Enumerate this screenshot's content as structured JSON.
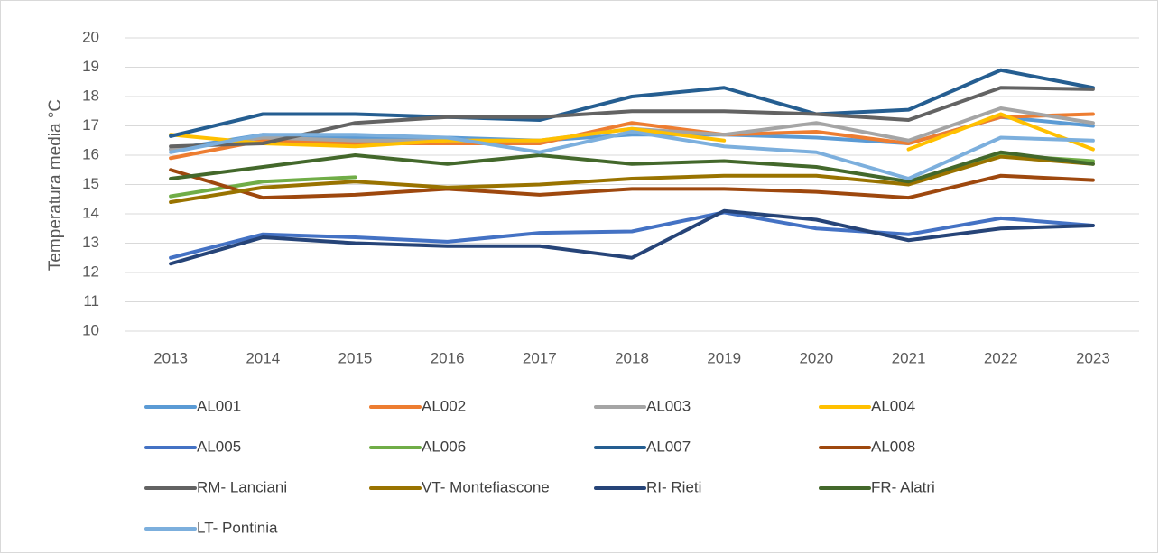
{
  "chart_data": {
    "type": "line",
    "y_label": "Temperatura media °C",
    "categories": [
      "2013",
      "2014",
      "2015",
      "2016",
      "2017",
      "2018",
      "2019",
      "2020",
      "2021",
      "2022",
      "2023"
    ],
    "ylim": [
      10,
      20
    ],
    "yticks": [
      10,
      11,
      12,
      13,
      14,
      15,
      16,
      17,
      18,
      19,
      20
    ],
    "grid": true,
    "series": [
      {
        "name": "AL001",
        "color": "#5b9bd5",
        "values": [
          16.2,
          16.7,
          16.6,
          16.6,
          16.5,
          16.7,
          16.7,
          16.6,
          16.4,
          17.3,
          17.0
        ]
      },
      {
        "name": "AL002",
        "color": "#ed7d31",
        "values": [
          15.9,
          16.5,
          16.4,
          16.4,
          16.4,
          17.1,
          16.7,
          16.8,
          16.4,
          17.3,
          17.4
        ]
      },
      {
        "name": "AL003",
        "color": "#a5a5a5",
        "values": [
          16.2,
          16.6,
          16.5,
          16.5,
          16.5,
          16.9,
          16.7,
          17.1,
          16.5,
          17.6,
          17.1
        ]
      },
      {
        "name": "AL004",
        "color": "#ffc000",
        "values": [
          16.7,
          16.4,
          16.3,
          16.5,
          16.5,
          16.9,
          16.5,
          null,
          16.2,
          17.4,
          16.2
        ]
      },
      {
        "name": "AL005",
        "color": "#4472c4",
        "values": [
          12.5,
          13.3,
          13.2,
          13.05,
          13.35,
          13.4,
          14.05,
          13.5,
          13.3,
          13.85,
          13.6
        ]
      },
      {
        "name": "AL006",
        "color": "#70ad47",
        "values": [
          14.6,
          15.1,
          15.25,
          null,
          null,
          null,
          null,
          null,
          15.1,
          16.0,
          15.8
        ]
      },
      {
        "name": "AL007",
        "color": "#255e91",
        "values": [
          16.65,
          17.4,
          17.4,
          17.3,
          17.2,
          18.0,
          18.3,
          17.4,
          17.55,
          18.9,
          18.3
        ]
      },
      {
        "name": "AL008",
        "color": "#9e480e",
        "values": [
          15.5,
          14.55,
          14.65,
          14.85,
          14.65,
          14.85,
          14.85,
          14.75,
          14.55,
          15.3,
          15.15
        ]
      },
      {
        "name": "RM- Lanciani",
        "color": "#636363",
        "values": [
          16.3,
          16.4,
          17.1,
          17.3,
          17.3,
          17.5,
          17.5,
          17.4,
          17.2,
          18.3,
          18.25
        ]
      },
      {
        "name": "VT- Montefiascone",
        "color": "#997300",
        "values": [
          14.4,
          14.9,
          15.1,
          14.9,
          15.0,
          15.2,
          15.3,
          15.3,
          15.0,
          15.95,
          15.7
        ]
      },
      {
        "name": "RI- Rieti",
        "color": "#264478",
        "values": [
          12.3,
          13.2,
          13.0,
          12.9,
          12.9,
          12.5,
          14.1,
          13.8,
          13.1,
          13.5,
          13.6
        ]
      },
      {
        "name": "FR- Alatri",
        "color": "#43682b",
        "values": [
          15.2,
          15.6,
          16.0,
          15.7,
          16.0,
          15.7,
          15.8,
          15.6,
          15.1,
          16.1,
          15.7
        ]
      },
      {
        "name": "LT- Pontinia",
        "color": "#7cafdd",
        "values": [
          16.1,
          16.7,
          16.7,
          16.6,
          16.1,
          16.8,
          16.3,
          16.1,
          15.2,
          16.6,
          16.5
        ]
      }
    ]
  }
}
